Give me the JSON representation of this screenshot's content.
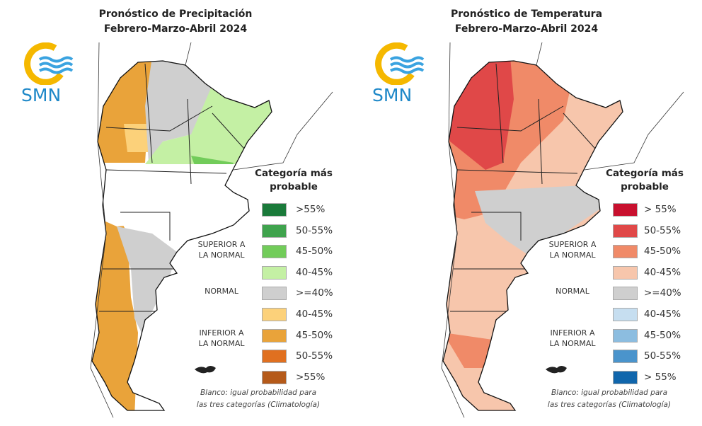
{
  "panels": [
    {
      "title_line1": "Pronóstico de Precipitación",
      "title_line2": "Febrero-Marzo-Abril 2024",
      "logo": "SMN",
      "legend_title_1": "Categoría más",
      "legend_title_2": "probable",
      "categories": {
        "superior_1": "SUPERIOR A",
        "superior_2": "LA NORMAL",
        "normal": "NORMAL",
        "inferior_1": "INFERIOR A",
        "inferior_2": "LA NORMAL"
      },
      "legend": [
        {
          "label": ">55%",
          "color": "#1a7a3a"
        },
        {
          "label": "50-55%",
          "color": "#3fa34d"
        },
        {
          "label": "45-50%",
          "color": "#72cc5a"
        },
        {
          "label": "40-45%",
          "color": "#c4f0a4"
        },
        {
          "label": ">=40%",
          "color": "#cfcfcf"
        },
        {
          "label": "40-45%",
          "color": "#fcd17a"
        },
        {
          "label": "45-50%",
          "color": "#e9a33a"
        },
        {
          "label": "50-55%",
          "color": "#e07020"
        },
        {
          "label": ">55%",
          "color": "#b55a1a"
        }
      ],
      "footnote_1": "Blanco: igual probabilidad para",
      "footnote_2": "las tres categorías (Climatología)"
    },
    {
      "title_line1": "Pronóstico de Temperatura",
      "title_line2": "Febrero-Marzo-Abril 2024",
      "logo": "SMN",
      "legend_title_1": "Categoría más",
      "legend_title_2": "probable",
      "categories": {
        "superior_1": "SUPERIOR A",
        "superior_2": "LA NORMAL",
        "normal": "NORMAL",
        "inferior_1": "INFERIOR A",
        "inferior_2": "LA NORMAL"
      },
      "legend": [
        {
          "label": "> 55%",
          "color": "#c8102e"
        },
        {
          "label": "50-55%",
          "color": "#e04848"
        },
        {
          "label": "45-50%",
          "color": "#f08a68"
        },
        {
          "label": "40-45%",
          "color": "#f7c6ac"
        },
        {
          "label": ">=40%",
          "color": "#cfcfcf"
        },
        {
          "label": "40-45%",
          "color": "#c6def0"
        },
        {
          "label": "45-50%",
          "color": "#8cbde0"
        },
        {
          "label": "50-55%",
          "color": "#4a94cc"
        },
        {
          "label": "> 55%",
          "color": "#1066ac"
        }
      ],
      "footnote_1": "Blanco: igual probabilidad para",
      "footnote_2": "las tres categorías (Climatología)"
    }
  ]
}
